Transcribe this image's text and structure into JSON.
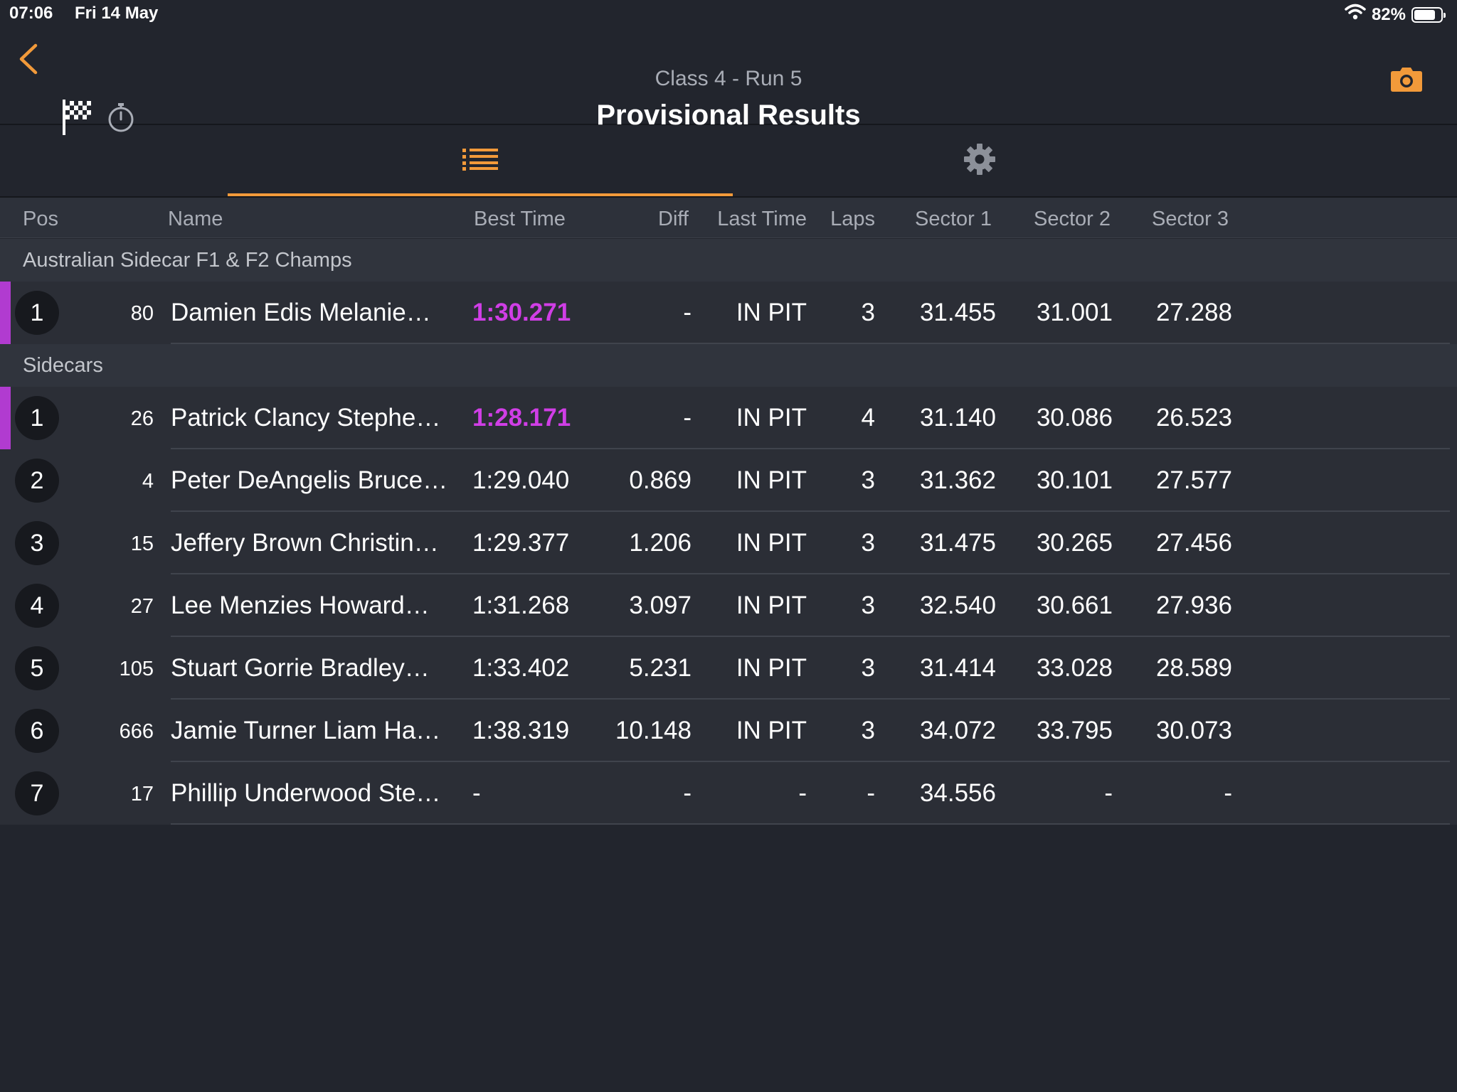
{
  "status": {
    "time": "07:06",
    "date": "Fri 14 May",
    "battery": "82%",
    "battery_level": 0.82
  },
  "header": {
    "subtitle": "Class 4 - Run 5",
    "title": "Provisional Results"
  },
  "columns": {
    "pos": "Pos",
    "name": "Name",
    "best": "Best Time",
    "diff": "Diff",
    "last": "Last Time",
    "laps": "Laps",
    "s1": "Sector 1",
    "s2": "Sector 2",
    "s3": "Sector 3"
  },
  "colors": {
    "accent": "#f29a3a",
    "best_highlight": "#d03ee6",
    "background": "#22252d"
  },
  "groups": [
    {
      "name": "Australian Sidecar F1 & F2 Champs",
      "rows": [
        {
          "pos": "1",
          "num": "80",
          "name": "Damien Edis Melanie…",
          "best": "1:30.271",
          "best_highlight": true,
          "diff": "-",
          "last": "IN PIT",
          "laps": "3",
          "s1": "31.455",
          "s2": "31.001",
          "s3": "27.288"
        }
      ]
    },
    {
      "name": "Sidecars",
      "rows": [
        {
          "pos": "1",
          "num": "26",
          "name": "Patrick Clancy Stephe…",
          "best": "1:28.171",
          "best_highlight": true,
          "diff": "-",
          "last": "IN PIT",
          "laps": "4",
          "s1": "31.140",
          "s2": "30.086",
          "s3": "26.523"
        },
        {
          "pos": "2",
          "num": "4",
          "name": "Peter DeAngelis Bruce…",
          "best": "1:29.040",
          "best_highlight": false,
          "diff": "0.869",
          "last": "IN PIT",
          "laps": "3",
          "s1": "31.362",
          "s2": "30.101",
          "s3": "27.577"
        },
        {
          "pos": "3",
          "num": "15",
          "name": "Jeffery Brown Christin…",
          "best": "1:29.377",
          "best_highlight": false,
          "diff": "1.206",
          "last": "IN PIT",
          "laps": "3",
          "s1": "31.475",
          "s2": "30.265",
          "s3": "27.456"
        },
        {
          "pos": "4",
          "num": "27",
          "name": "Lee Menzies Howard…",
          "best": "1:31.268",
          "best_highlight": false,
          "diff": "3.097",
          "last": "IN PIT",
          "laps": "3",
          "s1": "32.540",
          "s2": "30.661",
          "s3": "27.936"
        },
        {
          "pos": "5",
          "num": "105",
          "name": "Stuart Gorrie Bradley…",
          "best": "1:33.402",
          "best_highlight": false,
          "diff": "5.231",
          "last": "IN PIT",
          "laps": "3",
          "s1": "31.414",
          "s2": "33.028",
          "s3": "28.589"
        },
        {
          "pos": "6",
          "num": "666",
          "name": "Jamie Turner Liam Ha…",
          "best": "1:38.319",
          "best_highlight": false,
          "diff": "10.148",
          "last": "IN PIT",
          "laps": "3",
          "s1": "34.072",
          "s2": "33.795",
          "s3": "30.073"
        },
        {
          "pos": "7",
          "num": "17",
          "name": "Phillip Underwood Ste…",
          "best": "-",
          "best_highlight": false,
          "diff": "-",
          "last": "-",
          "laps": "-",
          "s1": "34.556",
          "s2": "-",
          "s3": "-"
        }
      ]
    }
  ]
}
